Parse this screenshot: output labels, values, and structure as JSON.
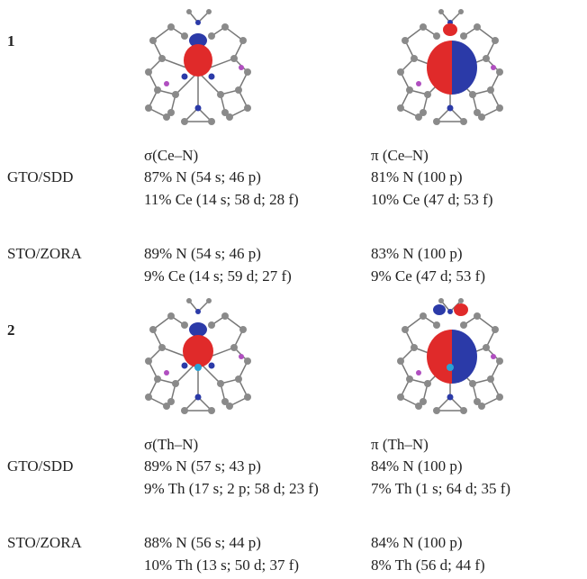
{
  "panels": [
    {
      "label": "1",
      "orbitals": [
        "σ(Ce–N)",
        "π (Ce–N)"
      ],
      "rows": [
        {
          "method": "GTO/SDD",
          "left": [
            "87% N (54 s; 46 p)",
            "11% Ce (14 s; 58 d; 28 f)"
          ],
          "right": [
            "81% N (100 p)",
            "10% Ce (47 d; 53 f)"
          ]
        },
        {
          "method": "STO/ZORA",
          "left": [
            "89% N (54 s; 46 p)",
            "9% Ce (14 s; 59 d; 27 f)"
          ],
          "right": [
            "83% N (100 p)",
            "9% Ce (47 d; 53 f)"
          ]
        }
      ]
    },
    {
      "label": "2",
      "orbitals": [
        "σ(Th–N)",
        "π (Th–N)"
      ],
      "rows": [
        {
          "method": "GTO/SDD",
          "left": [
            "89% N (57 s; 43 p)",
            "9% Th (17 s; 2 p; 58 d; 23 f)"
          ],
          "right": [
            "84% N (100 p)",
            "7% Th (1 s; 64 d; 35 f)"
          ]
        },
        {
          "method": "STO/ZORA",
          "left": [
            "88% N (56 s; 44 p)",
            "10% Th (13 s; 50 d; 37 f)"
          ],
          "right": [
            "84% N (100 p)",
            "8% Th (56 d; 44 f)"
          ]
        }
      ]
    }
  ]
}
